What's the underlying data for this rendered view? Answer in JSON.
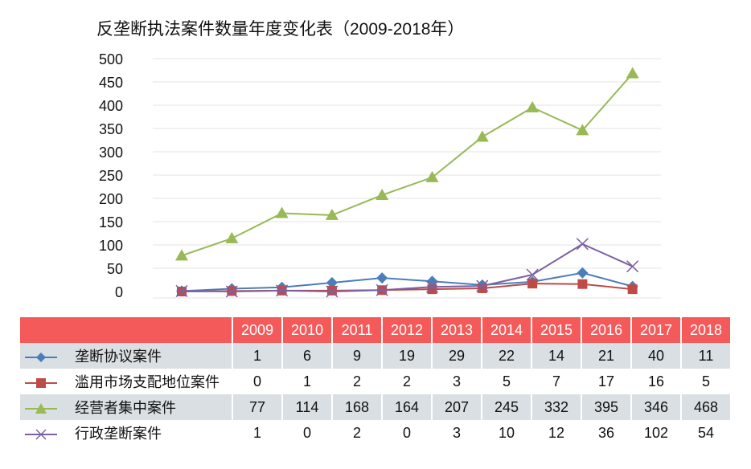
{
  "chart_data": {
    "type": "line",
    "title": "反垄断执法案件数量年度变化表（2009-2018年）",
    "categories": [
      "2009",
      "2010",
      "2011",
      "2012",
      "2013",
      "2014",
      "2015",
      "2016",
      "2017",
      "2018"
    ],
    "ylim": [
      0,
      500
    ],
    "yticks": [
      "0",
      "50",
      "100",
      "150",
      "200",
      "250",
      "300",
      "350",
      "400",
      "450",
      "500"
    ],
    "grid": true,
    "legend": "data-table",
    "series": [
      {
        "name": "垄断协议案件",
        "values": [
          1,
          6,
          9,
          19,
          29,
          22,
          14,
          21,
          40,
          11
        ],
        "color": "#4a7ebb",
        "marker": "diamond"
      },
      {
        "name": "滥用市场支配地位案件",
        "values": [
          0,
          1,
          2,
          2,
          3,
          5,
          7,
          17,
          16,
          5
        ],
        "color": "#be4b48",
        "marker": "square"
      },
      {
        "name": "经营者集中案件",
        "values": [
          77,
          114,
          168,
          164,
          207,
          245,
          332,
          395,
          346,
          468
        ],
        "color": "#98b954",
        "marker": "triangle"
      },
      {
        "name": "行政垄断案件",
        "values": [
          1,
          0,
          2,
          0,
          3,
          10,
          12,
          36,
          102,
          54
        ],
        "color": "#7d60a0",
        "marker": "x"
      }
    ]
  }
}
